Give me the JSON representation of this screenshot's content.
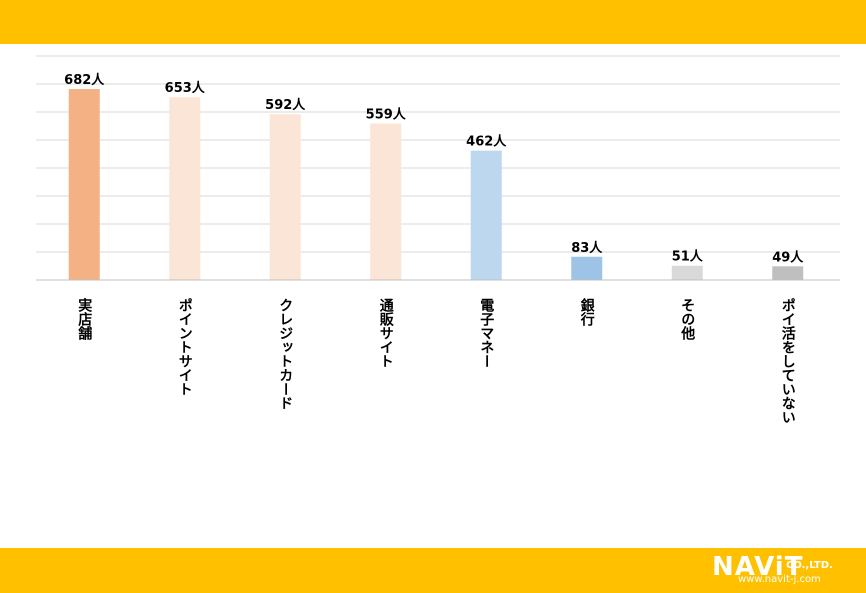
{
  "chart_data": {
    "type": "bar",
    "categories": [
      "実店舗",
      "ポイントサイト",
      "クレジットカード",
      "通販サイト",
      "電子マネー",
      "銀行",
      "その他",
      "ポイ活をしていない"
    ],
    "values": [
      682,
      653,
      592,
      559,
      462,
      83,
      51,
      49
    ],
    "data_labels": [
      "682人",
      "653人",
      "592人",
      "559人",
      "462人",
      "83人",
      "51人",
      "49人"
    ],
    "colors": [
      "#f4b183",
      "#fbe5d6",
      "#fbe5d6",
      "#fbe5d6",
      "#bdd7ee",
      "#9dc3e6",
      "#d9d9d9",
      "#bfbfbf"
    ],
    "ylim": [
      0,
      800
    ],
    "grid": true,
    "title": "",
    "xlabel": "",
    "ylabel": ""
  },
  "branding": {
    "logo_text": "NAViT",
    "logo_suffix": "CO.,LTD.",
    "logo_url": "www.navit-j.com",
    "band_color": "#ffc000"
  }
}
